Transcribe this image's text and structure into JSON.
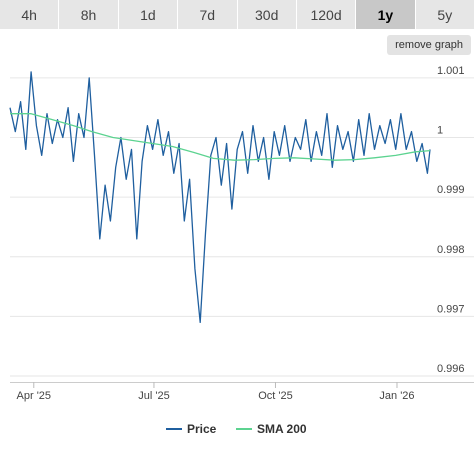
{
  "tabs": [
    {
      "label": "4h",
      "active": false
    },
    {
      "label": "8h",
      "active": false
    },
    {
      "label": "1d",
      "active": false
    },
    {
      "label": "7d",
      "active": false
    },
    {
      "label": "30d",
      "active": false
    },
    {
      "label": "120d",
      "active": false
    },
    {
      "label": "1y",
      "active": true
    },
    {
      "label": "5y",
      "active": false
    }
  ],
  "remove_graph_label": "remove graph",
  "chart_data": {
    "type": "line",
    "x_start": "2025-03-14",
    "x_end": "2026-01-26",
    "x_ticks": [
      {
        "label": "Apr '25",
        "date": "2025-04-01"
      },
      {
        "label": "Jul '25",
        "date": "2025-07-01"
      },
      {
        "label": "Oct '25",
        "date": "2025-10-01"
      },
      {
        "label": "Jan '26",
        "date": "2026-01-01"
      }
    ],
    "y_ticks": [
      0.996,
      0.997,
      0.998,
      0.999,
      1,
      1.001
    ],
    "y_tick_labels": [
      "0.996",
      "0.997",
      "0.998",
      "0.999",
      "1",
      "1.001"
    ],
    "ylim": [
      0.9959,
      1.0013
    ],
    "grid": true,
    "legend_position": "bottom",
    "series": [
      {
        "name": "Price",
        "color": "#1f5f9f",
        "points": [
          [
            "2025-03-14",
            1.0005
          ],
          [
            "2025-03-18",
            1.0001
          ],
          [
            "2025-03-22",
            1.0006
          ],
          [
            "2025-03-26",
            0.9998
          ],
          [
            "2025-03-30",
            1.0011
          ],
          [
            "2025-04-03",
            1.0002
          ],
          [
            "2025-04-07",
            0.9997
          ],
          [
            "2025-04-11",
            1.0004
          ],
          [
            "2025-04-15",
            0.9999
          ],
          [
            "2025-04-19",
            1.0003
          ],
          [
            "2025-04-23",
            1.0
          ],
          [
            "2025-04-27",
            1.0005
          ],
          [
            "2025-05-01",
            0.9996
          ],
          [
            "2025-05-05",
            1.0004
          ],
          [
            "2025-05-09",
            1.0
          ],
          [
            "2025-05-13",
            1.001
          ],
          [
            "2025-05-17",
            0.9997
          ],
          [
            "2025-05-21",
            0.9983
          ],
          [
            "2025-05-25",
            0.9992
          ],
          [
            "2025-05-29",
            0.9986
          ],
          [
            "2025-06-02",
            0.9995
          ],
          [
            "2025-06-06",
            1.0
          ],
          [
            "2025-06-10",
            0.9993
          ],
          [
            "2025-06-14",
            0.9998
          ],
          [
            "2025-06-18",
            0.9983
          ],
          [
            "2025-06-22",
            0.9996
          ],
          [
            "2025-06-26",
            1.0002
          ],
          [
            "2025-06-30",
            0.9998
          ],
          [
            "2025-07-04",
            1.0003
          ],
          [
            "2025-07-08",
            0.9997
          ],
          [
            "2025-07-12",
            1.0001
          ],
          [
            "2025-07-16",
            0.9994
          ],
          [
            "2025-07-20",
            0.9999
          ],
          [
            "2025-07-24",
            0.9986
          ],
          [
            "2025-07-28",
            0.9993
          ],
          [
            "2025-08-01",
            0.9978
          ],
          [
            "2025-08-05",
            0.9969
          ],
          [
            "2025-08-09",
            0.9984
          ],
          [
            "2025-08-13",
            0.9997
          ],
          [
            "2025-08-17",
            1.0
          ],
          [
            "2025-08-21",
            0.9992
          ],
          [
            "2025-08-25",
            0.9999
          ],
          [
            "2025-08-29",
            0.9988
          ],
          [
            "2025-09-02",
            0.9998
          ],
          [
            "2025-09-06",
            1.0001
          ],
          [
            "2025-09-10",
            0.9994
          ],
          [
            "2025-09-14",
            1.0002
          ],
          [
            "2025-09-18",
            0.9996
          ],
          [
            "2025-09-22",
            1.0
          ],
          [
            "2025-09-26",
            0.9993
          ],
          [
            "2025-09-30",
            1.0001
          ],
          [
            "2025-10-04",
            0.9997
          ],
          [
            "2025-10-08",
            1.0002
          ],
          [
            "2025-10-12",
            0.9996
          ],
          [
            "2025-10-16",
            1.0
          ],
          [
            "2025-10-20",
            0.9998
          ],
          [
            "2025-10-24",
            1.0003
          ],
          [
            "2025-10-28",
            0.9996
          ],
          [
            "2025-11-01",
            1.0001
          ],
          [
            "2025-11-05",
            0.9997
          ],
          [
            "2025-11-09",
            1.0004
          ],
          [
            "2025-11-13",
            0.9995
          ],
          [
            "2025-11-17",
            1.0002
          ],
          [
            "2025-11-21",
            0.9998
          ],
          [
            "2025-11-25",
            1.0001
          ],
          [
            "2025-11-29",
            0.9996
          ],
          [
            "2025-12-03",
            1.0003
          ],
          [
            "2025-12-07",
            0.9997
          ],
          [
            "2025-12-11",
            1.0004
          ],
          [
            "2025-12-15",
            0.9998
          ],
          [
            "2025-12-19",
            1.0002
          ],
          [
            "2025-12-23",
            0.9999
          ],
          [
            "2025-12-27",
            1.0003
          ],
          [
            "2025-12-31",
            0.9998
          ],
          [
            "2026-01-04",
            1.0004
          ],
          [
            "2026-01-08",
            0.9998
          ],
          [
            "2026-01-12",
            1.0001
          ],
          [
            "2026-01-16",
            0.9996
          ],
          [
            "2026-01-20",
            0.9999
          ],
          [
            "2026-01-24",
            0.9994
          ],
          [
            "2026-01-26",
            0.9998
          ]
        ]
      },
      {
        "name": "SMA 200",
        "color": "#5cd390",
        "points": [
          [
            "2025-03-14",
            1.0004
          ],
          [
            "2025-03-30",
            1.0004
          ],
          [
            "2025-04-15",
            1.0003
          ],
          [
            "2025-05-01",
            1.0002
          ],
          [
            "2025-05-15",
            1.0001
          ],
          [
            "2025-05-31",
            1.0
          ],
          [
            "2025-06-15",
            0.99995
          ],
          [
            "2025-06-30",
            0.9999
          ],
          [
            "2025-07-15",
            0.99985
          ],
          [
            "2025-07-31",
            0.99975
          ],
          [
            "2025-08-15",
            0.99965
          ],
          [
            "2025-08-31",
            0.99962
          ],
          [
            "2025-09-15",
            0.99963
          ],
          [
            "2025-09-30",
            0.99965
          ],
          [
            "2025-10-15",
            0.99966
          ],
          [
            "2025-10-31",
            0.99964
          ],
          [
            "2025-11-15",
            0.99962
          ],
          [
            "2025-11-30",
            0.99963
          ],
          [
            "2025-12-15",
            0.99966
          ],
          [
            "2025-12-31",
            0.9997
          ],
          [
            "2026-01-15",
            0.99976
          ],
          [
            "2026-01-26",
            0.99978
          ]
        ]
      }
    ]
  }
}
